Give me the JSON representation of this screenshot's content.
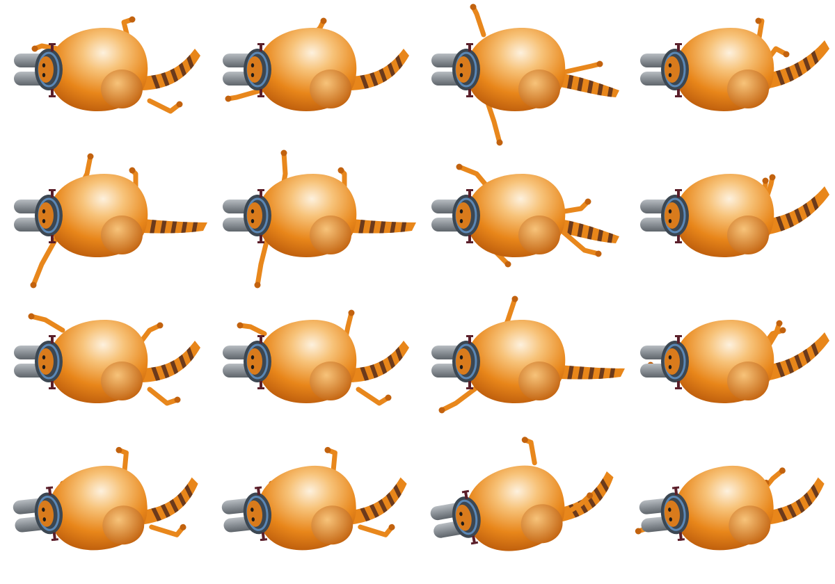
{
  "sprite_sheet": {
    "background_color": "#ffffff",
    "colors": {
      "fur_base": "#e8861a",
      "fur_light": "#f7c37a",
      "fur_highlight": "#fdf1de",
      "fur_dark": "#c2620e",
      "stripe": "#6b3a1c",
      "leg": "#e8871c",
      "helmet": "#3c4752",
      "helmet_band": "#5b87b5",
      "face": "#d97b1c",
      "tube": "#8a9096",
      "tube_dark": "#5f656b",
      "bolt": "#5b1f2a",
      "eye": "#1e1a17"
    },
    "frames": [
      {
        "row": 1,
        "col": 1,
        "name": "rear-leg-kick-1"
      },
      {
        "row": 1,
        "col": 2,
        "name": "arm-forward-1"
      },
      {
        "row": 1,
        "col": 3,
        "name": "leg-extend-down-1"
      },
      {
        "row": 1,
        "col": 4,
        "name": "crouch-1"
      },
      {
        "row": 2,
        "col": 1,
        "name": "arm-up-leg-down-1"
      },
      {
        "row": 2,
        "col": 2,
        "name": "arm-up-leg-down-2"
      },
      {
        "row": 2,
        "col": 3,
        "name": "reach-back-1"
      },
      {
        "row": 2,
        "col": 4,
        "name": "crouch-2"
      },
      {
        "row": 3,
        "col": 1,
        "name": "arm-back-leg-kick-1"
      },
      {
        "row": 3,
        "col": 2,
        "name": "arm-back-leg-kick-2"
      },
      {
        "row": 3,
        "col": 3,
        "name": "leg-up-arm-down-1"
      },
      {
        "row": 3,
        "col": 4,
        "name": "crouch-3"
      },
      {
        "row": 4,
        "col": 1,
        "name": "tilt-1"
      },
      {
        "row": 4,
        "col": 2,
        "name": "tilt-2"
      },
      {
        "row": 4,
        "col": 3,
        "name": "tilt-3"
      },
      {
        "row": 4,
        "col": 4,
        "name": "tilt-arm-forward-1"
      }
    ]
  }
}
